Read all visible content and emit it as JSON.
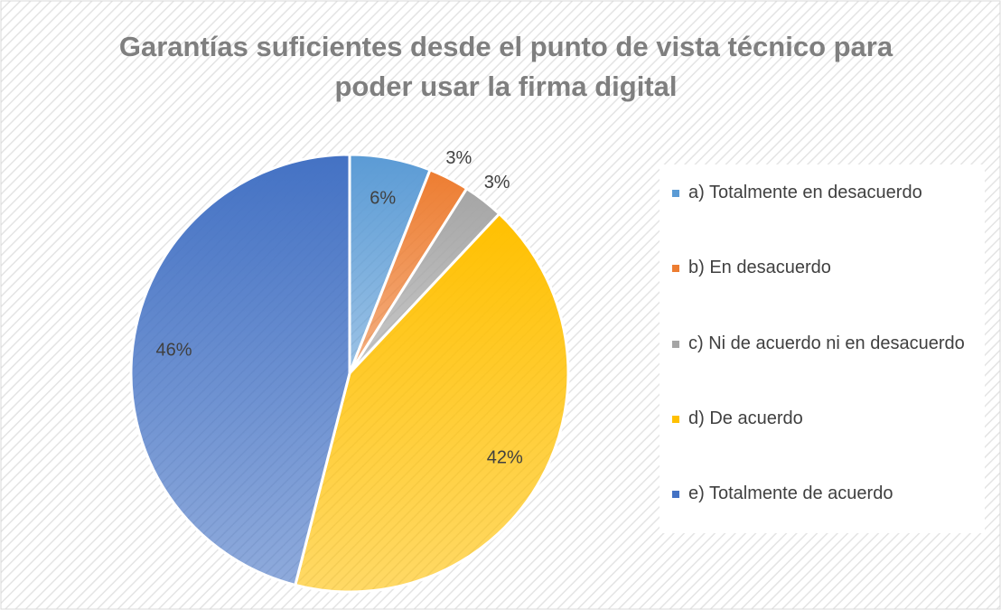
{
  "chart_data": {
    "type": "pie",
    "title": "Garantías suficientes desde el punto de vista técnico para poder usar la firma digital",
    "categories": [
      "a) Totalmente en desacuerdo",
      "b) En desacuerdo",
      "c) Ni de acuerdo ni en desacuerdo",
      "d) De acuerdo",
      "e) Totalmente de acuerdo"
    ],
    "values": [
      6,
      3,
      3,
      42,
      46
    ],
    "value_labels": [
      "6%",
      "3%",
      "3%",
      "42%",
      "46%"
    ],
    "colors": [
      "#5b9bd5",
      "#ed7d31",
      "#a5a5a5",
      "#ffc000",
      "#4472c4"
    ],
    "legend": "right"
  }
}
